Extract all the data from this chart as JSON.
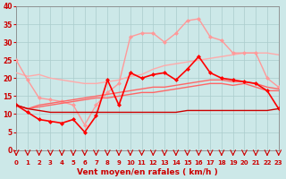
{
  "x": [
    0,
    1,
    2,
    3,
    4,
    5,
    6,
    7,
    8,
    9,
    10,
    11,
    12,
    13,
    14,
    15,
    16,
    17,
    18,
    19,
    20,
    21,
    22,
    23
  ],
  "series": [
    {
      "name": "light_smooth",
      "color": "#ffaaaa",
      "lw": 1.0,
      "marker": null,
      "y": [
        21.5,
        20.5,
        21.0,
        20.0,
        19.5,
        19.0,
        18.5,
        18.5,
        19.0,
        19.5,
        20.5,
        21.0,
        22.5,
        23.5,
        24.0,
        24.5,
        25.0,
        25.5,
        26.0,
        26.5,
        27.0,
        27.0,
        27.0,
        26.5
      ]
    },
    {
      "name": "light_jagged",
      "color": "#ff9999",
      "lw": 1.0,
      "marker": "D",
      "markersize": 2.0,
      "y": [
        25.0,
        19.5,
        14.5,
        14.0,
        13.5,
        12.5,
        7.0,
        12.5,
        16.0,
        18.5,
        31.5,
        32.5,
        32.5,
        30.0,
        32.5,
        36.0,
        36.5,
        31.5,
        30.5,
        27.0,
        27.0,
        27.0,
        20.0,
        17.5
      ]
    },
    {
      "name": "med_upper",
      "color": "#ff6666",
      "lw": 1.0,
      "marker": null,
      "y": [
        12.5,
        11.5,
        12.5,
        13.0,
        13.5,
        14.0,
        14.5,
        15.0,
        15.5,
        16.0,
        16.5,
        17.0,
        17.5,
        17.5,
        18.0,
        18.5,
        19.0,
        19.5,
        19.5,
        19.0,
        19.0,
        18.5,
        17.5,
        17.0
      ]
    },
    {
      "name": "med_lower",
      "color": "#ff6666",
      "lw": 1.0,
      "marker": null,
      "y": [
        12.5,
        11.5,
        12.0,
        12.5,
        13.0,
        13.5,
        14.0,
        14.5,
        14.5,
        15.0,
        15.5,
        16.0,
        16.0,
        16.5,
        17.0,
        17.5,
        18.0,
        18.5,
        18.5,
        18.0,
        18.5,
        17.5,
        16.5,
        16.5
      ]
    },
    {
      "name": "dark_jagged",
      "color": "#ff0000",
      "lw": 1.2,
      "marker": "D",
      "markersize": 2.0,
      "y": [
        12.5,
        10.5,
        8.5,
        8.0,
        7.5,
        8.5,
        5.0,
        9.5,
        19.5,
        12.5,
        21.5,
        20.0,
        21.0,
        21.5,
        19.5,
        22.5,
        26.0,
        21.5,
        20.0,
        19.5,
        19.0,
        18.5,
        16.5,
        11.5
      ]
    },
    {
      "name": "dark_flat",
      "color": "#cc0000",
      "lw": 1.0,
      "marker": null,
      "y": [
        12.5,
        11.5,
        11.0,
        10.5,
        10.5,
        10.5,
        10.5,
        10.5,
        10.5,
        10.5,
        10.5,
        10.5,
        10.5,
        10.5,
        10.5,
        11.0,
        11.0,
        11.0,
        11.0,
        11.0,
        11.0,
        11.0,
        11.0,
        11.5
      ]
    }
  ],
  "xlim": [
    0,
    23
  ],
  "ylim": [
    0,
    40
  ],
  "xticks": [
    0,
    1,
    2,
    3,
    4,
    5,
    6,
    7,
    8,
    9,
    10,
    11,
    12,
    13,
    14,
    15,
    16,
    17,
    18,
    19,
    20,
    21,
    22,
    23
  ],
  "yticks": [
    0,
    5,
    10,
    15,
    20,
    25,
    30,
    35,
    40
  ],
  "xlabel": "Vent moyen/en rafales ( km/h )",
  "bg_color": "#cce8e8",
  "grid_color": "#aacccc",
  "tick_color": "#cc0000",
  "label_color": "#cc0000"
}
